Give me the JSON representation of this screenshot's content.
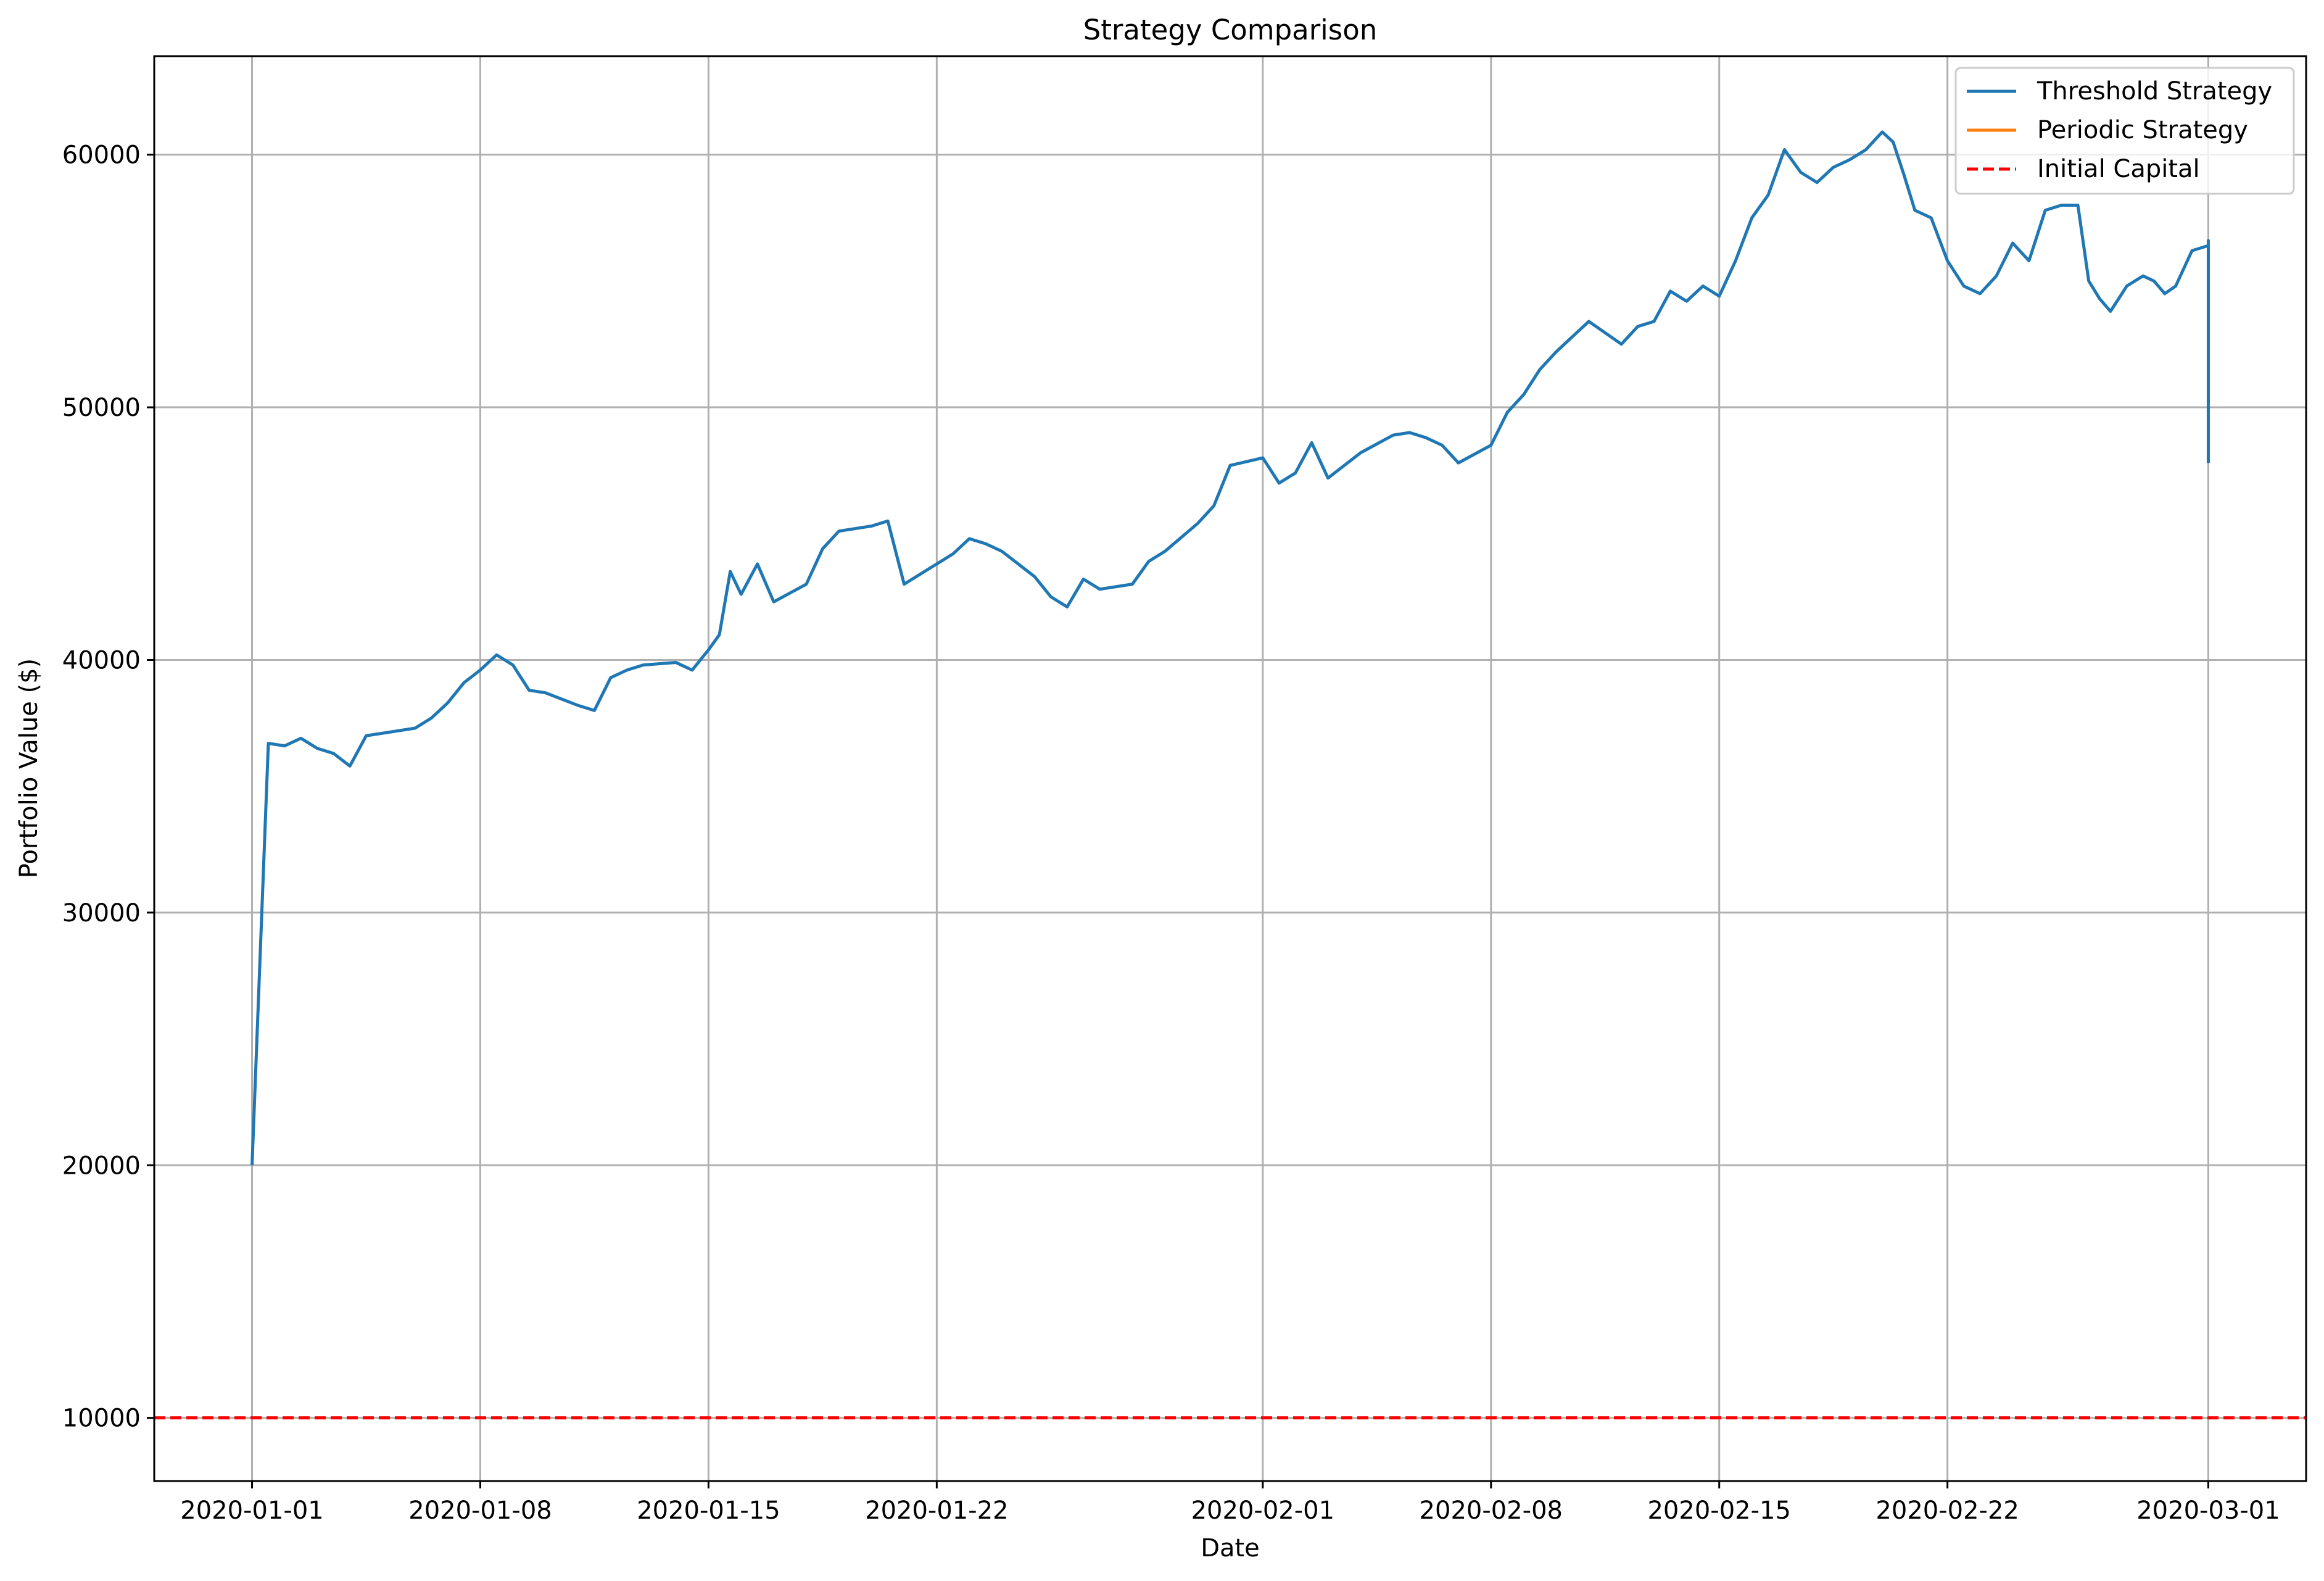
{
  "chart_data": {
    "type": "line",
    "title": "Strategy Comparison",
    "xlabel": "Date",
    "ylabel": "Portfolio Value ($)",
    "x_ticks": [
      "2020-01-01",
      "2020-01-08",
      "2020-01-15",
      "2020-01-22",
      "2020-02-01",
      "2020-02-08",
      "2020-02-15",
      "2020-02-22",
      "2020-03-01"
    ],
    "y_ticks": [
      10000,
      20000,
      30000,
      40000,
      50000,
      60000
    ],
    "xlim": [
      "2019-12-29",
      "2020-03-04"
    ],
    "ylim": [
      7500,
      63900
    ],
    "grid": true,
    "legend_position": "top-right",
    "series": [
      {
        "name": "Threshold Strategy",
        "color": "#1f77b4",
        "style": "solid",
        "points": [
          [
            "2020-01-01",
            20000
          ],
          [
            "2020-01-01",
            36700
          ],
          [
            "2020-01-02",
            36600
          ],
          [
            "2020-01-02",
            36900
          ],
          [
            "2020-01-03",
            36500
          ],
          [
            "2020-01-03",
            36300
          ],
          [
            "2020-01-04",
            35800
          ],
          [
            "2020-01-04",
            37000
          ],
          [
            "2020-01-05",
            37100
          ],
          [
            "2020-01-06",
            37300
          ],
          [
            "2020-01-06",
            37700
          ],
          [
            "2020-01-07",
            38300
          ],
          [
            "2020-01-07",
            39100
          ],
          [
            "2020-01-08",
            39600
          ],
          [
            "2020-01-08",
            40200
          ],
          [
            "2020-01-09",
            39800
          ],
          [
            "2020-01-09",
            38800
          ],
          [
            "2020-01-10",
            38700
          ],
          [
            "2020-01-11",
            38200
          ],
          [
            "2020-01-11",
            38000
          ],
          [
            "2020-01-12",
            39300
          ],
          [
            "2020-01-12",
            39600
          ],
          [
            "2020-01-13",
            39800
          ],
          [
            "2020-01-14",
            39900
          ],
          [
            "2020-01-14",
            39600
          ],
          [
            "2020-01-15",
            40400
          ],
          [
            "2020-01-15",
            41000
          ],
          [
            "2020-01-15",
            43500
          ],
          [
            "2020-01-16",
            42600
          ],
          [
            "2020-01-16",
            43800
          ],
          [
            "2020-01-17",
            42300
          ],
          [
            "2020-01-18",
            43000
          ],
          [
            "2020-01-18",
            44400
          ],
          [
            "2020-01-19",
            45100
          ],
          [
            "2020-01-20",
            45300
          ],
          [
            "2020-01-20",
            45500
          ],
          [
            "2020-01-21",
            43000
          ],
          [
            "2020-01-21",
            43400
          ],
          [
            "2020-01-22",
            43800
          ],
          [
            "2020-01-22",
            44200
          ],
          [
            "2020-01-23",
            44800
          ],
          [
            "2020-01-23",
            44600
          ],
          [
            "2020-01-24",
            44300
          ],
          [
            "2020-01-25",
            43300
          ],
          [
            "2020-01-25",
            42500
          ],
          [
            "2020-01-26",
            42100
          ],
          [
            "2020-01-26",
            43200
          ],
          [
            "2020-01-27",
            42800
          ],
          [
            "2020-01-28",
            43000
          ],
          [
            "2020-01-28",
            43900
          ],
          [
            "2020-01-29",
            44300
          ],
          [
            "2020-01-30",
            45400
          ],
          [
            "2020-01-30",
            46100
          ],
          [
            "2020-01-31",
            47700
          ],
          [
            "2020-02-01",
            48000
          ],
          [
            "2020-02-01",
            47000
          ],
          [
            "2020-02-02",
            47400
          ],
          [
            "2020-02-02",
            48600
          ],
          [
            "2020-02-03",
            47200
          ],
          [
            "2020-02-03",
            47700
          ],
          [
            "2020-02-04",
            48200
          ],
          [
            "2020-02-05",
            48900
          ],
          [
            "2020-02-05",
            49000
          ],
          [
            "2020-02-06",
            48800
          ],
          [
            "2020-02-06",
            48500
          ],
          [
            "2020-02-07",
            47800
          ],
          [
            "2020-02-08",
            48500
          ],
          [
            "2020-02-08",
            49800
          ],
          [
            "2020-02-09",
            50500
          ],
          [
            "2020-02-09",
            51500
          ],
          [
            "2020-02-10",
            52200
          ],
          [
            "2020-02-10",
            52800
          ],
          [
            "2020-02-11",
            53400
          ],
          [
            "2020-02-12",
            52500
          ],
          [
            "2020-02-12",
            53200
          ],
          [
            "2020-02-13",
            53400
          ],
          [
            "2020-02-13",
            54600
          ],
          [
            "2020-02-14",
            54200
          ],
          [
            "2020-02-14",
            54800
          ],
          [
            "2020-02-15",
            54400
          ],
          [
            "2020-02-15",
            55800
          ],
          [
            "2020-02-16",
            57500
          ],
          [
            "2020-02-16",
            58400
          ],
          [
            "2020-02-17",
            60200
          ],
          [
            "2020-02-17",
            59300
          ],
          [
            "2020-02-18",
            58900
          ],
          [
            "2020-02-18",
            59500
          ],
          [
            "2020-02-19",
            59800
          ],
          [
            "2020-02-19",
            60200
          ],
          [
            "2020-02-20",
            60900
          ],
          [
            "2020-02-20",
            60500
          ],
          [
            "2020-02-20",
            59200
          ],
          [
            "2020-02-21",
            57800
          ],
          [
            "2020-02-21",
            57500
          ],
          [
            "2020-02-22",
            55800
          ],
          [
            "2020-02-22",
            54800
          ],
          [
            "2020-02-23",
            54500
          ],
          [
            "2020-02-23",
            55200
          ],
          [
            "2020-02-24",
            56500
          ],
          [
            "2020-02-24",
            55800
          ],
          [
            "2020-02-25",
            57800
          ],
          [
            "2020-02-25",
            58000
          ],
          [
            "2020-02-26",
            58000
          ],
          [
            "2020-02-26",
            55000
          ],
          [
            "2020-02-26",
            54300
          ],
          [
            "2020-02-27",
            53800
          ],
          [
            "2020-02-27",
            54800
          ],
          [
            "2020-02-28",
            55200
          ],
          [
            "2020-02-28",
            55000
          ],
          [
            "2020-02-28",
            54500
          ],
          [
            "2020-02-29",
            54800
          ],
          [
            "2020-02-29",
            56200
          ],
          [
            "2020-03-01",
            56400
          ],
          [
            "2020-03-01",
            56600
          ],
          [
            "2020-03-01",
            56000
          ],
          [
            "2020-03-01",
            54800
          ],
          [
            "2020-03-01",
            54200
          ],
          [
            "2020-03-01",
            53500
          ],
          [
            "2020-03-01",
            52400
          ],
          [
            "2020-03-01",
            50800
          ],
          [
            "2020-03-01",
            49500
          ],
          [
            "2020-03-01",
            48500
          ],
          [
            "2020-03-01",
            47800
          ]
        ]
      },
      {
        "name": "Periodic Strategy",
        "color": "#ff7f0e",
        "style": "solid",
        "points": []
      },
      {
        "name": "Initial Capital",
        "color": "#ff0000",
        "style": "dashed",
        "hline": 10000
      }
    ]
  }
}
